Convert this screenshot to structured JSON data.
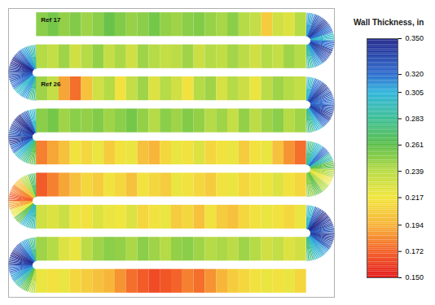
{
  "chart_data": {
    "type": "heatmap",
    "tick_labels": false,
    "colorbar": {
      "label": "Wall Thickness, in",
      "range": [
        0.15,
        0.35
      ],
      "ticks": [
        {
          "value": 0.15,
          "label": "0.150"
        },
        0.172,
        0.194,
        0.217,
        0.239,
        0.261,
        0.283,
        0.305,
        {
          "value": 0.32,
          "label": "0.320"
        },
        {
          "value": 0.35,
          "label": "0.350"
        }
      ]
    },
    "annotations": [
      {
        "text": "Ref 17",
        "row": 0
      },
      {
        "text": "Ref 26",
        "row": 2
      }
    ],
    "cells": [
      [
        0.25,
        0.255,
        0.248,
        0.252,
        0.245,
        0.25,
        0.258,
        0.252,
        0.247,
        0.25,
        0.255,
        0.248,
        0.245,
        0.25,
        0.252,
        0.247,
        0.243,
        0.25,
        0.24,
        0.235,
        0.205,
        0.23,
        0.225,
        0.24
      ],
      [
        0.24,
        0.235,
        0.245,
        0.23,
        0.24,
        0.248,
        0.235,
        0.242,
        0.23,
        0.245,
        0.24,
        0.235,
        0.238,
        0.245,
        0.232,
        0.24,
        0.236,
        0.244,
        0.238,
        0.23,
        0.24,
        0.235,
        0.245,
        0.24
      ],
      [
        0.245,
        0.235,
        0.19,
        0.175,
        0.2,
        0.23,
        0.24,
        0.215,
        0.235,
        0.245,
        0.225,
        0.24,
        0.23,
        0.215,
        0.24,
        0.245,
        0.228,
        0.24,
        0.232,
        0.22,
        0.238,
        0.245,
        0.24,
        0.235
      ],
      [
        0.25,
        0.255,
        0.245,
        0.25,
        0.248,
        0.252,
        0.245,
        0.25,
        0.255,
        0.248,
        0.24,
        0.25,
        0.245,
        0.252,
        0.248,
        0.24,
        0.245,
        0.235,
        0.248,
        0.238,
        0.245,
        0.25,
        0.24,
        0.245
      ],
      [
        0.18,
        0.19,
        0.2,
        0.215,
        0.21,
        0.22,
        0.205,
        0.215,
        0.22,
        0.2,
        0.195,
        0.21,
        0.22,
        0.215,
        0.225,
        0.21,
        0.215,
        0.22,
        0.205,
        0.215,
        0.22,
        0.2,
        0.185,
        0.175
      ],
      [
        0.17,
        0.18,
        0.19,
        0.2,
        0.21,
        0.205,
        0.215,
        0.21,
        0.2,
        0.215,
        0.21,
        0.205,
        0.22,
        0.215,
        0.21,
        0.205,
        0.215,
        0.22,
        0.21,
        0.215,
        0.22,
        0.225,
        0.215,
        0.21
      ],
      [
        0.23,
        0.225,
        0.232,
        0.22,
        0.215,
        0.225,
        0.22,
        0.218,
        0.225,
        0.21,
        0.215,
        0.22,
        0.205,
        0.21,
        0.2,
        0.215,
        0.205,
        0.2,
        0.21,
        0.215,
        0.22,
        0.215,
        0.21,
        0.22
      ],
      [
        0.245,
        0.24,
        0.225,
        0.22,
        0.238,
        0.245,
        0.25,
        0.248,
        0.242,
        0.25,
        0.245,
        0.24,
        0.248,
        0.25,
        0.245,
        0.24,
        0.242,
        0.238,
        0.245,
        0.24,
        0.23,
        0.235,
        0.225,
        0.23
      ],
      [
        0.22,
        0.215,
        0.22,
        0.21,
        0.205,
        0.2,
        0.195,
        0.185,
        0.175,
        0.17,
        0.165,
        0.168,
        0.172,
        0.18,
        0.175,
        0.185,
        0.195,
        0.205,
        0.21,
        0.215,
        0.22,
        0.215,
        0.22,
        0.21
      ]
    ],
    "bends": [
      {
        "side": "right",
        "rows": [
          0,
          1
        ],
        "values": [
          0.31,
          0.33,
          0.34,
          0.32,
          0.3,
          0.32,
          0.34,
          0.33,
          0.31,
          0.29
        ]
      },
      {
        "side": "left",
        "rows": [
          1,
          2
        ],
        "values": [
          0.29,
          0.31,
          0.33,
          0.35,
          0.34,
          0.33,
          0.32,
          0.3,
          0.31,
          0.28
        ]
      },
      {
        "side": "right",
        "rows": [
          2,
          3
        ],
        "values": [
          0.3,
          0.32,
          0.34,
          0.33,
          0.32,
          0.33,
          0.34,
          0.32,
          0.3,
          0.28
        ]
      },
      {
        "side": "left",
        "rows": [
          3,
          4
        ],
        "values": [
          0.3,
          0.33,
          0.35,
          0.34,
          0.33,
          0.34,
          0.32,
          0.3,
          0.28,
          0.26
        ]
      },
      {
        "side": "right",
        "rows": [
          4,
          5
        ],
        "values": [
          0.28,
          0.3,
          0.32,
          0.29,
          0.26,
          0.24,
          0.22,
          0.24,
          0.26,
          0.25
        ]
      },
      {
        "side": "left",
        "rows": [
          5,
          6
        ],
        "values": [
          0.27,
          0.24,
          0.2,
          0.18,
          0.17,
          0.19,
          0.22,
          0.26,
          0.3,
          0.29
        ]
      },
      {
        "side": "right",
        "rows": [
          6,
          7
        ],
        "values": [
          0.3,
          0.33,
          0.35,
          0.34,
          0.33,
          0.34,
          0.33,
          0.31,
          0.3,
          0.28
        ]
      },
      {
        "side": "left",
        "rows": [
          7,
          8
        ],
        "values": [
          0.28,
          0.31,
          0.33,
          0.35,
          0.34,
          0.32,
          0.31,
          0.29,
          0.26,
          0.24
        ]
      }
    ]
  }
}
